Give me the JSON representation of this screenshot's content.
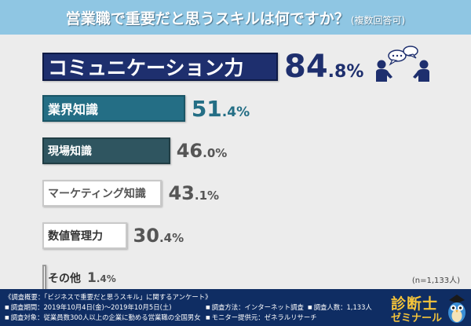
{
  "header": {
    "title": "営業職で重要だと思うスキルは何ですか？",
    "title_note": "(複数回答可)"
  },
  "chart_data": {
    "type": "bar",
    "orientation": "horizontal",
    "categories": [
      "コミュニケーション力",
      "業界知識",
      "現場知識",
      "マーケティング知識",
      "数値管理力",
      "その他"
    ],
    "values": [
      84.8,
      51.4,
      46.0,
      43.1,
      30.4,
      1.4
    ],
    "value_labels": [
      {
        "big": "84",
        "small": ".8%"
      },
      {
        "big": "51",
        "small": ".4%"
      },
      {
        "big": "46",
        "small": ".0%"
      },
      {
        "big": "43",
        "small": ".1%"
      },
      {
        "big": "30",
        "small": ".4%"
      },
      {
        "big": "1",
        "small": ".4%"
      }
    ],
    "colors": [
      "#1e2f6e",
      "#246e85",
      "#2f5560",
      "#ffffff",
      "#ffffff",
      "#ffffff"
    ],
    "border_colors": [
      "#0e1a45",
      "#1a5566",
      "#203d44",
      "#c9c9c9",
      "#c9c9c9",
      "#9a9a9a"
    ],
    "label_colors": [
      "#ffffff",
      "#ffffff",
      "#ffffff",
      "#555555",
      "#333333",
      "#333333"
    ],
    "xlim": [
      0,
      100
    ],
    "title": "営業職で重要だと思うスキルは何ですか？",
    "xlabel": "",
    "ylabel": ""
  },
  "sample_size": "(n=1,133人)",
  "footer": {
    "items": [
      "《調査概要：「ビジネスで重要だと思うスキル」に関するアンケート》",
      "調査期間：2019年10月4日(金)～2019年10月5日(土)",
      "調査方法：インターネット調査",
      "調査人数：1,133人",
      "調査対象：従業員数300人以上の企業に勤める営業職の全国男女",
      "モニター提供元：ゼネラルリサーチ"
    ],
    "brand_line1": "診断士",
    "brand_line2": "ゼミナール"
  }
}
